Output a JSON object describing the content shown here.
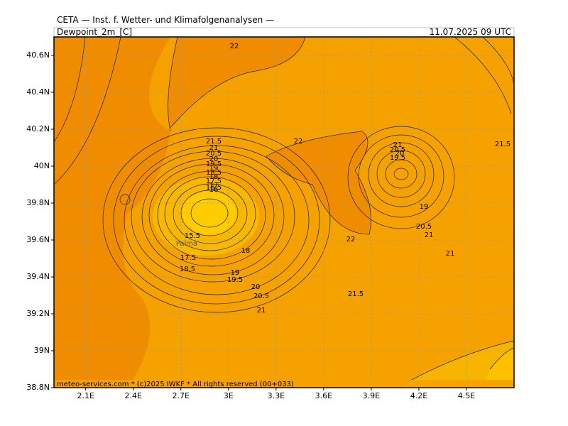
{
  "header": {
    "institute": "CETA — Inst. f. Wetter- und Klimafolgenanalysen —",
    "field": "Dewpoint_2m_[C]",
    "valid_time": "11.07.2025 09 UTC"
  },
  "map": {
    "xlim": [
      1.9,
      4.8
    ],
    "ylim": [
      38.8,
      40.7
    ],
    "xticks": [
      {
        "value": 2.1,
        "label": "2.1E"
      },
      {
        "value": 2.4,
        "label": "2.4E"
      },
      {
        "value": 2.7,
        "label": "2.7E"
      },
      {
        "value": 3.0,
        "label": "3E"
      },
      {
        "value": 3.3,
        "label": "3.3E"
      },
      {
        "value": 3.6,
        "label": "3.6E"
      },
      {
        "value": 3.9,
        "label": "3.9E"
      },
      {
        "value": 4.2,
        "label": "4.2E"
      },
      {
        "value": 4.5,
        "label": "4.5E"
      }
    ],
    "yticks": [
      {
        "value": 38.8,
        "label": "38.8N"
      },
      {
        "value": 39.0,
        "label": "39N"
      },
      {
        "value": 39.2,
        "label": "39.2N"
      },
      {
        "value": 39.4,
        "label": "39.4N"
      },
      {
        "value": 39.6,
        "label": "39.6N"
      },
      {
        "value": 39.8,
        "label": "39.8N"
      },
      {
        "value": 40.0,
        "label": "40N"
      },
      {
        "value": 40.2,
        "label": "40.2N"
      },
      {
        "value": 40.4,
        "label": "40.4N"
      },
      {
        "value": 40.6,
        "label": "40.6N"
      }
    ],
    "grid": true,
    "contour_labels": [
      22,
      22,
      22,
      21.5,
      21,
      20.5,
      20,
      19.5,
      19,
      18.5,
      18,
      17.5,
      17,
      16.5,
      16,
      15.5,
      17.5,
      18.5,
      18,
      19,
      19.5,
      20,
      20.5,
      21,
      21.5,
      21,
      20.5,
      20,
      19.5,
      19,
      20.5,
      21,
      21,
      21.5
    ],
    "place_labels": [
      "Palma"
    ],
    "footer": "meteo-services.com * (c)2025 IWKF * All rights reserved (00+033)"
  }
}
